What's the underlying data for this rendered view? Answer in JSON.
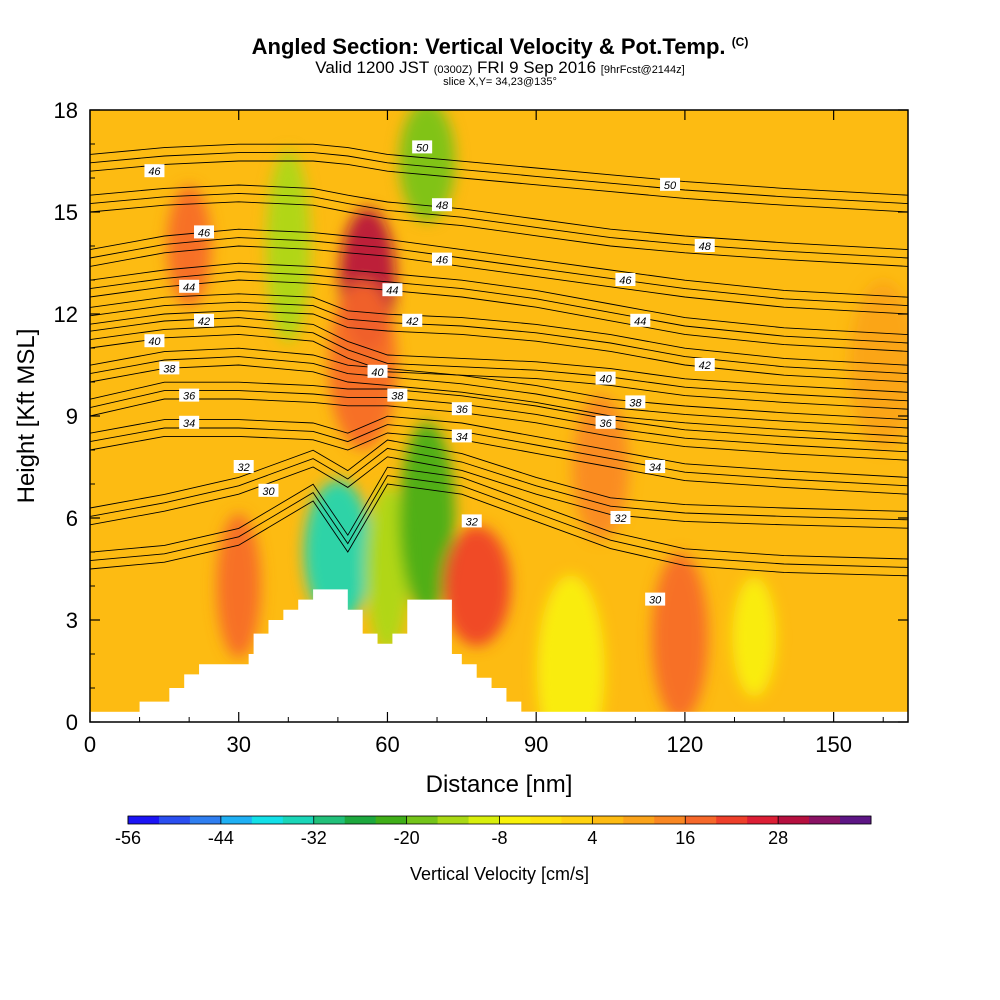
{
  "header": {
    "title_main": "Angled Section: Vertical Velocity & Pot.Temp.",
    "title_unit": "(C)",
    "valid_prefix": "Valid 1200 JST",
    "valid_utc": "(0300Z)",
    "valid_date": "FRI 9 Sep 2016",
    "forecast": "[9hrFcst@2144z]",
    "slice": "slice X,Y= 34,23@135°"
  },
  "chart_data": {
    "type": "heatmap",
    "xlabel": "Distance [nm]",
    "ylabel": "Height [Kft MSL]",
    "xlim": [
      0,
      165
    ],
    "ylim": [
      0,
      18
    ],
    "xticks": [
      0,
      30,
      60,
      90,
      120,
      150
    ],
    "yticks": [
      0,
      3,
      6,
      9,
      12,
      15,
      18
    ],
    "colorbar": {
      "title": "Vertical Velocity [cm/s]",
      "levels": [
        -56,
        -52,
        -48,
        -44,
        -40,
        -36,
        -32,
        -28,
        -24,
        -20,
        -16,
        -12,
        -8,
        -4,
        0,
        4,
        8,
        12,
        16,
        20,
        24,
        28,
        32,
        36
      ],
      "colors": [
        "#1b14f5",
        "#2a4ef0",
        "#2f7ef0",
        "#1fb0f4",
        "#13e0e8",
        "#1ad6b8",
        "#21c07a",
        "#1da83e",
        "#3fae18",
        "#74c41a",
        "#a9d914",
        "#d8ef0c",
        "#f8f20a",
        "#fde40c",
        "#ffd20f",
        "#fdbb12",
        "#fba31a",
        "#f98722",
        "#f6682a",
        "#ee3f2a",
        "#dc1e35",
        "#b6103f",
        "#8a1264",
        "#5d1685"
      ],
      "tick_labels": [
        "-56",
        "-44",
        "-32",
        "-20",
        "-8",
        "4",
        "16",
        "28"
      ]
    },
    "terrain": {
      "x": [
        10,
        16,
        19,
        22,
        32,
        33,
        36,
        39,
        42,
        45,
        46,
        52,
        55,
        58,
        61,
        64,
        67,
        73,
        75,
        78,
        81,
        84,
        87
      ],
      "height": [
        0.6,
        1.0,
        1.4,
        1.7,
        2.0,
        2.6,
        3.0,
        3.3,
        3.6,
        3.9,
        3.9,
        3.3,
        2.6,
        2.3,
        2.6,
        3.6,
        3.6,
        2.0,
        1.7,
        1.3,
        1.0,
        0.6,
        0.3
      ]
    },
    "velocity_features": [
      {
        "x": 20,
        "y": 14,
        "value": 16
      },
      {
        "x": 56,
        "y": 13,
        "value": 28
      },
      {
        "x": 55,
        "y": 10.5,
        "value": 16
      },
      {
        "x": 40,
        "y": 14,
        "value": -16
      },
      {
        "x": 68,
        "y": 16.5,
        "value": -20
      },
      {
        "x": 50,
        "y": 5,
        "value": -36
      },
      {
        "x": 60,
        "y": 4.5,
        "value": -16
      },
      {
        "x": 68,
        "y": 6,
        "value": -24
      },
      {
        "x": 78,
        "y": 4,
        "value": 20
      },
      {
        "x": 30,
        "y": 4,
        "value": 16
      },
      {
        "x": 119,
        "y": 2.5,
        "value": 16
      },
      {
        "x": 97,
        "y": 1.5,
        "value": -8
      },
      {
        "x": 134,
        "y": 2.5,
        "value": -8
      },
      {
        "x": 103,
        "y": 7.5,
        "value": 12
      },
      {
        "x": 160,
        "y": 10.5,
        "value": 8
      }
    ],
    "isentropes": [
      {
        "value": 30,
        "label_x": 35,
        "label_y": 6.8,
        "y": [
          4.5,
          4.7,
          5.2,
          6.5,
          5.0,
          7.0,
          6.7,
          5.9,
          5.1,
          4.6,
          4.4,
          4.3
        ]
      },
      {
        "value": 32,
        "label_x": 31,
        "label_y": 7.5,
        "y": [
          5.8,
          6.2,
          6.7,
          7.5,
          6.9,
          7.8,
          7.4,
          6.7,
          6.1,
          5.9,
          5.8,
          5.7
        ]
      },
      {
        "value": 34,
        "label_x": 20,
        "label_y": 8.8,
        "y": [
          8.0,
          8.4,
          8.4,
          8.3,
          8.0,
          8.5,
          8.3,
          7.9,
          7.5,
          7.1,
          6.9,
          6.7
        ]
      },
      {
        "value": 36,
        "label_x": 20,
        "label_y": 9.6,
        "y": [
          9.0,
          9.5,
          9.5,
          9.4,
          9.3,
          9.3,
          9.1,
          8.8,
          8.4,
          8.1,
          7.9,
          7.7
        ]
      },
      {
        "value": 38,
        "label_x": 16,
        "label_y": 10.4,
        "y": [
          10.0,
          10.4,
          10.5,
          10.3,
          10.0,
          9.9,
          9.7,
          9.4,
          9.0,
          8.8,
          8.6,
          8.4
        ]
      },
      {
        "value": 40,
        "label_x": 13,
        "label_y": 11.2,
        "y": [
          11.0,
          11.3,
          11.4,
          11.2,
          10.7,
          10.3,
          10.2,
          10.1,
          9.9,
          9.6,
          9.4,
          9.2
        ]
      },
      {
        "value": 42,
        "label_x": 23,
        "label_y": 11.8,
        "y": [
          11.7,
          12.0,
          12.1,
          12.0,
          11.6,
          11.5,
          11.4,
          11.2,
          10.9,
          10.5,
          10.2,
          10.0
        ]
      },
      {
        "value": 44,
        "label_x": 20,
        "label_y": 12.8,
        "y": [
          12.5,
          12.8,
          13.0,
          12.9,
          12.8,
          12.7,
          12.5,
          12.2,
          11.8,
          11.4,
          11.1,
          10.9
        ]
      },
      {
        "value": 46,
        "label_x": 23,
        "label_y": 14.4,
        "y": [
          13.4,
          13.8,
          14.0,
          13.9,
          13.8,
          13.7,
          13.4,
          13.1,
          12.8,
          12.5,
          12.2,
          12.0
        ]
      },
      {
        "value": 48,
        "label_x": 70,
        "label_y": 14.8,
        "y": [
          15.0,
          15.2,
          15.3,
          15.2,
          15.0,
          14.8,
          14.6,
          14.3,
          14.0,
          13.8,
          13.6,
          13.4
        ]
      },
      {
        "value": 50,
        "label_x": 66,
        "label_y": 16.6,
        "y": [
          16.2,
          16.4,
          16.5,
          16.5,
          16.4,
          16.2,
          16.0,
          15.8,
          15.6,
          15.4,
          15.2,
          15.0
        ]
      }
    ],
    "isentrope_x": [
      0,
      15,
      30,
      45,
      52,
      60,
      75,
      90,
      105,
      120,
      140,
      165
    ],
    "contour_labels": [
      {
        "text": "46",
        "x": 13,
        "y": 16.2
      },
      {
        "text": "46",
        "x": 23,
        "y": 14.4
      },
      {
        "text": "44",
        "x": 20,
        "y": 12.8
      },
      {
        "text": "42",
        "x": 23,
        "y": 11.8
      },
      {
        "text": "40",
        "x": 13,
        "y": 11.2
      },
      {
        "text": "38",
        "x": 16,
        "y": 10.4
      },
      {
        "text": "36",
        "x": 20,
        "y": 9.6
      },
      {
        "text": "34",
        "x": 20,
        "y": 8.8
      },
      {
        "text": "32",
        "x": 31,
        "y": 7.5
      },
      {
        "text": "30",
        "x": 36,
        "y": 6.8
      },
      {
        "text": "50",
        "x": 67,
        "y": 16.9
      },
      {
        "text": "48",
        "x": 71,
        "y": 15.2
      },
      {
        "text": "46",
        "x": 71,
        "y": 13.6
      },
      {
        "text": "44",
        "x": 61,
        "y": 12.7
      },
      {
        "text": "42",
        "x": 65,
        "y": 11.8
      },
      {
        "text": "40",
        "x": 58,
        "y": 10.3
      },
      {
        "text": "38",
        "x": 62,
        "y": 9.6
      },
      {
        "text": "36",
        "x": 75,
        "y": 9.2
      },
      {
        "text": "34",
        "x": 75,
        "y": 8.4
      },
      {
        "text": "32",
        "x": 77,
        "y": 5.9
      },
      {
        "text": "50",
        "x": 117,
        "y": 15.8
      },
      {
        "text": "48",
        "x": 124,
        "y": 14.0
      },
      {
        "text": "46",
        "x": 108,
        "y": 13.0
      },
      {
        "text": "44",
        "x": 111,
        "y": 11.8
      },
      {
        "text": "42",
        "x": 124,
        "y": 10.5
      },
      {
        "text": "40",
        "x": 104,
        "y": 10.1
      },
      {
        "text": "38",
        "x": 110,
        "y": 9.4
      },
      {
        "text": "36",
        "x": 104,
        "y": 8.8
      },
      {
        "text": "34",
        "x": 114,
        "y": 7.5
      },
      {
        "text": "32",
        "x": 107,
        "y": 6.0
      },
      {
        "text": "30",
        "x": 114,
        "y": 3.6
      }
    ]
  }
}
